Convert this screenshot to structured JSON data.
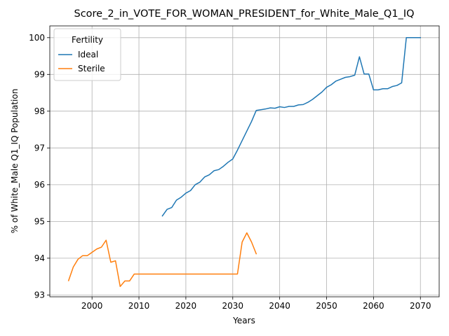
{
  "chart_data": {
    "type": "line",
    "title": "Score_2_in_VOTE_FOR_WOMAN_PRESIDENT_for_White_Male_Q1_IQ",
    "xlabel": "Years",
    "ylabel": "% of White_Male Q1_IQ Population",
    "xlim": [
      1991,
      2074
    ],
    "ylim": [
      92.95,
      100.32
    ],
    "xticks": [
      2000,
      2010,
      2020,
      2030,
      2040,
      2050,
      2060,
      2070
    ],
    "yticks": [
      93,
      94,
      95,
      96,
      97,
      98,
      99,
      100
    ],
    "grid": true,
    "legend": {
      "title": "Fertility",
      "placement": "upper-left"
    },
    "series": [
      {
        "name": "Ideal",
        "color": "#1f77b4",
        "x": [
          2015,
          2016,
          2017,
          2018,
          2019,
          2020,
          2021,
          2022,
          2023,
          2024,
          2025,
          2026,
          2027,
          2028,
          2029,
          2030,
          2031,
          2032,
          2033,
          2034,
          2035,
          2036,
          2037,
          2038,
          2039,
          2040,
          2041,
          2042,
          2043,
          2044,
          2045,
          2046,
          2047,
          2048,
          2049,
          2050,
          2051,
          2052,
          2053,
          2054,
          2055,
          2056,
          2057,
          2058,
          2059,
          2060,
          2061,
          2062,
          2063,
          2064,
          2065,
          2066,
          2067,
          2068,
          2069,
          2070
        ],
        "y": [
          95.15,
          95.33,
          95.38,
          95.58,
          95.66,
          95.77,
          95.84,
          96.0,
          96.07,
          96.21,
          96.27,
          96.38,
          96.41,
          96.5,
          96.61,
          96.7,
          96.94,
          97.2,
          97.46,
          97.72,
          98.02,
          98.04,
          98.06,
          98.09,
          98.08,
          98.12,
          98.1,
          98.13,
          98.13,
          98.17,
          98.18,
          98.24,
          98.32,
          98.42,
          98.52,
          98.65,
          98.72,
          98.82,
          98.87,
          98.92,
          98.94,
          98.98,
          99.48,
          99.01,
          99.01,
          98.58,
          98.58,
          98.61,
          98.61,
          98.67,
          98.7,
          98.77,
          100.0,
          100.0,
          100.0,
          100.0
        ]
      },
      {
        "name": "Sterile",
        "color": "#ff7f0e",
        "x": [
          1995,
          1996,
          1997,
          1998,
          1999,
          2000,
          2001,
          2002,
          2003,
          2004,
          2005,
          2006,
          2007,
          2008,
          2009,
          2010,
          2015,
          2020,
          2025,
          2030,
          2031,
          2032,
          2033,
          2034,
          2035
        ],
        "y": [
          93.39,
          93.76,
          93.97,
          94.07,
          94.07,
          94.16,
          94.25,
          94.3,
          94.49,
          93.89,
          93.93,
          93.23,
          93.38,
          93.38,
          93.57,
          93.57,
          93.57,
          93.57,
          93.57,
          93.57,
          93.57,
          94.44,
          94.69,
          94.44,
          94.12
        ]
      }
    ]
  }
}
